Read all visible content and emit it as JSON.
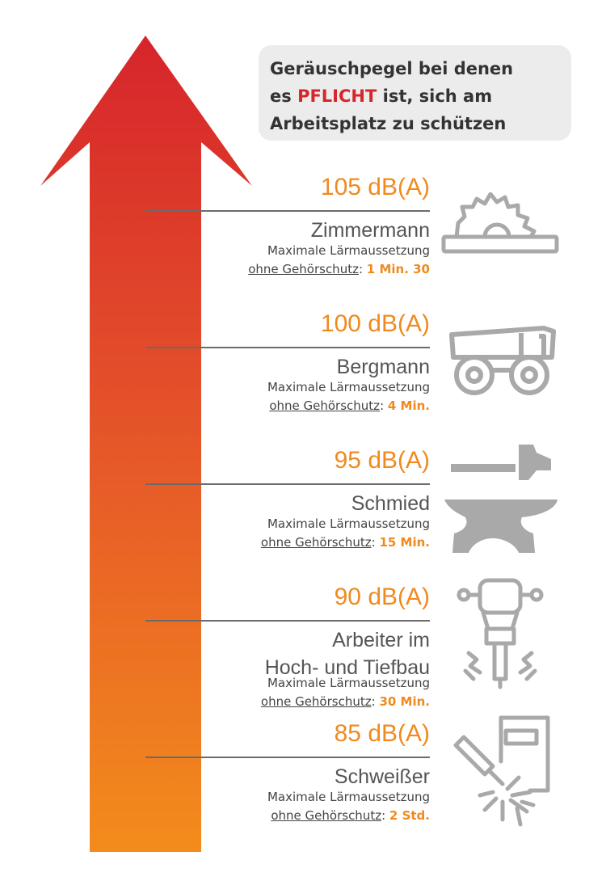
{
  "header": {
    "line1": "Geräuschpegel bei denen",
    "line2_prefix": "es ",
    "line2_highlight": "PFLICHT",
    "line2_suffix": " ist, sich am",
    "line3": "Arbeitsplatz zu schützen"
  },
  "levels": [
    {
      "db": "105 dB(A)",
      "job": "Zimmermann",
      "exposure_label": "Maximale Lärmaussetzung",
      "without_protection": "ohne Gehörschutz",
      "colon": ": ",
      "time": "1 Min. 30",
      "icon": "circular-saw-icon"
    },
    {
      "db": "100 dB(A)",
      "job": "Bergmann",
      "exposure_label": "Maximale Lärmaussetzung",
      "without_protection": "ohne Gehörschutz",
      "colon": ": ",
      "time": "4 Min.",
      "icon": "dump-truck-icon"
    },
    {
      "db": "95 dB(A)",
      "job": "Schmied",
      "exposure_label": "Maximale Lärmaussetzung",
      "without_protection": "ohne Gehörschutz",
      "colon": ": ",
      "time": "15 Min.",
      "icon": "anvil-hammer-icon"
    },
    {
      "db": "90 dB(A)",
      "job_line1": "Arbeiter im",
      "job_line2": "Hoch- und Tiefbau",
      "exposure_label": "Maximale Lärmaussetzung",
      "without_protection": "ohne Gehörschutz",
      "colon": ": ",
      "time": "30 Min.",
      "icon": "jackhammer-icon"
    },
    {
      "db": "85 dB(A)",
      "job": "Schweißer",
      "exposure_label": "Maximale Lärmaussetzung",
      "without_protection": "ohne Gehörschutz",
      "colon": ": ",
      "time": "2 Std.",
      "icon": "welding-icon"
    }
  ],
  "colors": {
    "arrow_top": "#d6252b",
    "arrow_bottom": "#f18a1c",
    "accent": "#f08a1e",
    "pflicht": "#d7262a",
    "icon_gray": "#a9a9a9"
  }
}
